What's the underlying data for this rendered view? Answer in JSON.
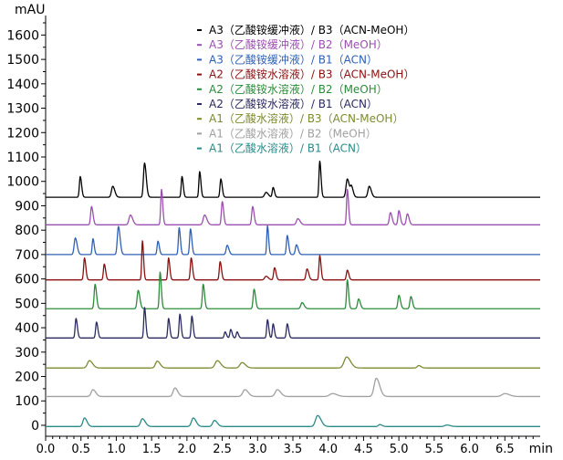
{
  "chart_data": {
    "type": "line",
    "title": "",
    "xlabel": "min",
    "ylabel": "mAU",
    "xlim": [
      0,
      7.0
    ],
    "ylim": [
      -45,
      1680
    ],
    "x_ticks": [
      "0.0",
      "0.5",
      "1.0",
      "1.5",
      "2.0",
      "2.5",
      "3.0",
      "3.5",
      "4.0",
      "4.5",
      "5.0",
      "5.5",
      "6.0",
      "6.5"
    ],
    "y_ticks": [
      "0",
      "100",
      "200",
      "300",
      "400",
      "500",
      "600",
      "700",
      "800",
      "900",
      "1000",
      "1100",
      "1200",
      "1300",
      "1400",
      "1500",
      "1600"
    ],
    "grid": false,
    "legend_position": "top-center",
    "series": [
      {
        "name": "A3（乙酸铵缓冲液）/ B3（ACN-MeOH）",
        "color": "#000000",
        "baseline": 935,
        "peaks": [
          [
            0.49,
            85,
            0.012
          ],
          [
            0.95,
            45,
            0.018
          ],
          [
            1.4,
            140,
            0.015
          ],
          [
            1.93,
            85,
            0.011
          ],
          [
            2.18,
            105,
            0.011
          ],
          [
            2.48,
            75,
            0.012
          ],
          [
            3.12,
            20,
            0.02
          ],
          [
            3.22,
            40,
            0.012
          ],
          [
            3.88,
            148,
            0.011
          ],
          [
            4.27,
            75,
            0.018
          ],
          [
            4.33,
            40,
            0.015
          ],
          [
            4.58,
            45,
            0.018
          ]
        ]
      },
      {
        "name": "A3（乙酸铵缓冲液）/ B2（MeOH）",
        "color": "#9b4fb0",
        "baseline": 822,
        "peaks": [
          [
            0.65,
            75,
            0.013
          ],
          [
            1.2,
            40,
            0.02
          ],
          [
            1.64,
            145,
            0.011
          ],
          [
            2.25,
            40,
            0.02
          ],
          [
            2.5,
            95,
            0.012
          ],
          [
            2.93,
            75,
            0.013
          ],
          [
            3.57,
            25,
            0.02
          ],
          [
            4.27,
            145,
            0.011
          ],
          [
            4.88,
            50,
            0.015
          ],
          [
            5.0,
            58,
            0.013
          ],
          [
            5.12,
            45,
            0.015
          ]
        ]
      },
      {
        "name": "A3（乙酸铵缓冲液）/ B1（ACN）",
        "color": "#2f60b5",
        "baseline": 700,
        "peaks": [
          [
            0.42,
            68,
            0.016
          ],
          [
            0.67,
            65,
            0.011
          ],
          [
            1.03,
            115,
            0.015
          ],
          [
            1.59,
            55,
            0.012
          ],
          [
            1.89,
            110,
            0.011
          ],
          [
            2.05,
            105,
            0.012
          ],
          [
            2.57,
            38,
            0.015
          ],
          [
            3.14,
            118,
            0.01
          ],
          [
            3.42,
            78,
            0.012
          ],
          [
            3.55,
            40,
            0.015
          ]
        ]
      },
      {
        "name": "A2（乙酸铵水溶液）/ B3（ACN-MeOH）",
        "color": "#8b1010",
        "baseline": 596,
        "peaks": [
          [
            0.55,
            90,
            0.012
          ],
          [
            0.83,
            65,
            0.012
          ],
          [
            1.37,
            160,
            0.01
          ],
          [
            1.74,
            90,
            0.011
          ],
          [
            2.06,
            90,
            0.012
          ],
          [
            2.47,
            75,
            0.012
          ],
          [
            3.12,
            15,
            0.02
          ],
          [
            3.24,
            50,
            0.013
          ],
          [
            3.7,
            45,
            0.015
          ],
          [
            3.88,
            100,
            0.011
          ],
          [
            4.27,
            40,
            0.013
          ]
        ]
      },
      {
        "name": "A2（乙酸铵水溶液）/ B2（MeOH）",
        "color": "#2c8c3a",
        "baseline": 478,
        "peaks": [
          [
            0.7,
            100,
            0.013
          ],
          [
            1.31,
            75,
            0.015
          ],
          [
            1.62,
            150,
            0.011
          ],
          [
            2.23,
            100,
            0.012
          ],
          [
            2.95,
            80,
            0.013
          ],
          [
            3.63,
            25,
            0.018
          ],
          [
            4.27,
            118,
            0.011
          ],
          [
            4.43,
            40,
            0.015
          ],
          [
            5.0,
            55,
            0.014
          ],
          [
            5.17,
            50,
            0.014
          ]
        ]
      },
      {
        "name": "A2（乙酸铵水溶液）/ B1（ACN）",
        "color": "#2a2a60",
        "baseline": 358,
        "peaks": [
          [
            0.43,
            80,
            0.012
          ],
          [
            0.72,
            65,
            0.012
          ],
          [
            1.4,
            125,
            0.011
          ],
          [
            1.74,
            80,
            0.011
          ],
          [
            1.9,
            98,
            0.011
          ],
          [
            2.07,
            90,
            0.011
          ],
          [
            2.54,
            25,
            0.012
          ],
          [
            2.62,
            35,
            0.012
          ],
          [
            2.71,
            25,
            0.012
          ],
          [
            3.14,
            75,
            0.011
          ],
          [
            3.22,
            58,
            0.011
          ],
          [
            3.42,
            58,
            0.012
          ]
        ]
      },
      {
        "name": "A1（乙酸水溶液）/ B3（ACN-MeOH）",
        "color": "#7d8a30",
        "baseline": 235,
        "peaks": [
          [
            0.62,
            30,
            0.028
          ],
          [
            1.58,
            28,
            0.025
          ],
          [
            2.43,
            30,
            0.03
          ],
          [
            2.78,
            22,
            0.03
          ],
          [
            4.26,
            45,
            0.035
          ],
          [
            5.28,
            10,
            0.02
          ]
        ]
      },
      {
        "name": "A1（乙酸水溶液）/ B2（MeOH）",
        "color": "#a0a0a0",
        "baseline": 118,
        "peaks": [
          [
            0.67,
            28,
            0.025
          ],
          [
            1.83,
            35,
            0.025
          ],
          [
            2.82,
            28,
            0.03
          ],
          [
            3.28,
            28,
            0.03
          ],
          [
            4.06,
            12,
            0.04
          ],
          [
            4.68,
            75,
            0.03
          ],
          [
            6.5,
            12,
            0.04
          ]
        ]
      },
      {
        "name": "A1（乙酸水溶液）/ B1（ACN）",
        "color": "#2a8a88",
        "baseline": -5,
        "peaks": [
          [
            0.55,
            35,
            0.022
          ],
          [
            1.37,
            32,
            0.025
          ],
          [
            2.09,
            35,
            0.025
          ],
          [
            2.39,
            25,
            0.025
          ],
          [
            3.85,
            45,
            0.03
          ],
          [
            4.73,
            8,
            0.02
          ],
          [
            5.68,
            6,
            0.03
          ]
        ]
      }
    ]
  }
}
